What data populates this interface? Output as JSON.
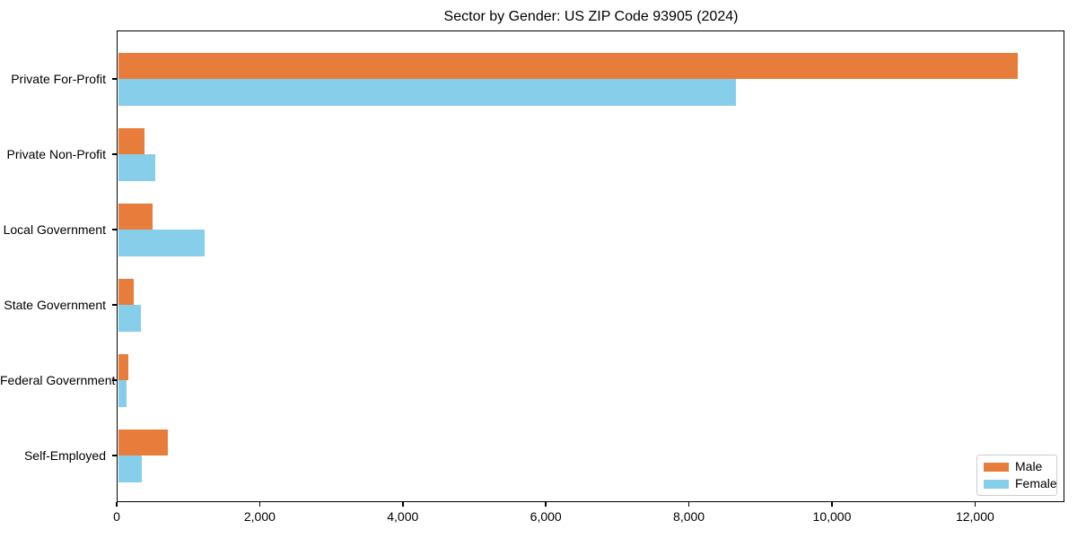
{
  "chart_data": {
    "type": "bar",
    "orientation": "horizontal",
    "title": "Sector by Gender: US ZIP Code 93905 (2024)",
    "categories": [
      "Private For-Profit",
      "Private Non-Profit",
      "Local Government",
      "State Government",
      "Federal Government",
      "Self-Employed"
    ],
    "series": [
      {
        "name": "Male",
        "color": "#e87d3b",
        "values": [
          12600,
          395,
          500,
          240,
          165,
          720
        ]
      },
      {
        "name": "Female",
        "color": "#87ceeb",
        "values": [
          8660,
          545,
          1225,
          335,
          140,
          355
        ]
      }
    ],
    "xlabel": "",
    "ylabel": "",
    "xlim": [
      0,
      13250
    ],
    "x_ticks": [
      {
        "value": 0,
        "label": "0"
      },
      {
        "value": 2000,
        "label": "2,000"
      },
      {
        "value": 4000,
        "label": "4,000"
      },
      {
        "value": 6000,
        "label": "6,000"
      },
      {
        "value": 8000,
        "label": "8,000"
      },
      {
        "value": 10000,
        "label": "10,000"
      },
      {
        "value": 12000,
        "label": "12,000"
      }
    ],
    "grid": false,
    "legend": {
      "position": "lower right",
      "entries": [
        "Male",
        "Female"
      ]
    }
  }
}
